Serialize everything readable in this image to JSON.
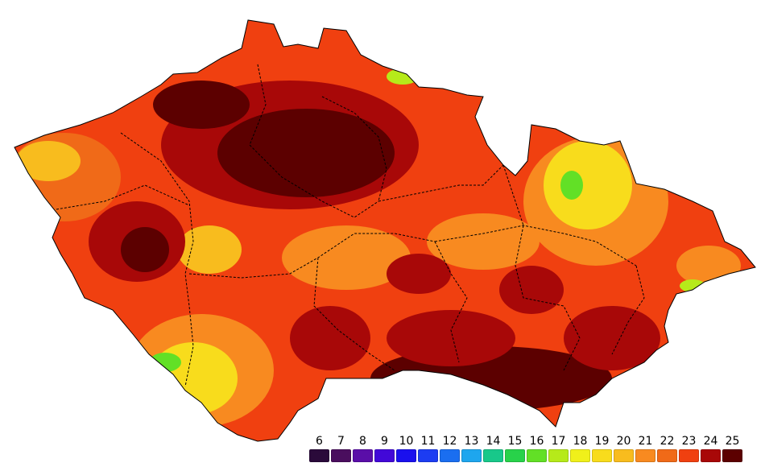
{
  "legend": {
    "items": [
      {
        "label": "6",
        "color": "#2a0a3a"
      },
      {
        "label": "7",
        "color": "#4a0e5e"
      },
      {
        "label": "8",
        "color": "#5a0ea8"
      },
      {
        "label": "9",
        "color": "#4208d8"
      },
      {
        "label": "10",
        "color": "#1a10ee"
      },
      {
        "label": "11",
        "color": "#1c3cf2"
      },
      {
        "label": "12",
        "color": "#1a6ef0"
      },
      {
        "label": "13",
        "color": "#1ea6ee"
      },
      {
        "label": "14",
        "color": "#18c88a"
      },
      {
        "label": "15",
        "color": "#28d24a"
      },
      {
        "label": "16",
        "color": "#62e026"
      },
      {
        "label": "17",
        "color": "#b6ea1a"
      },
      {
        "label": "18",
        "color": "#f0f01a"
      },
      {
        "label": "19",
        "color": "#f8dc1c"
      },
      {
        "label": "20",
        "color": "#f8bc1e"
      },
      {
        "label": "21",
        "color": "#f88a20"
      },
      {
        "label": "22",
        "color": "#f06a18"
      },
      {
        "label": "23",
        "color": "#f04010"
      },
      {
        "label": "24",
        "color": "#a80808"
      },
      {
        "label": "25",
        "color": "#5c0000"
      }
    ]
  },
  "map": {
    "region": "czech-republic",
    "background_color": "#ffffff",
    "border_color": "#000000"
  }
}
